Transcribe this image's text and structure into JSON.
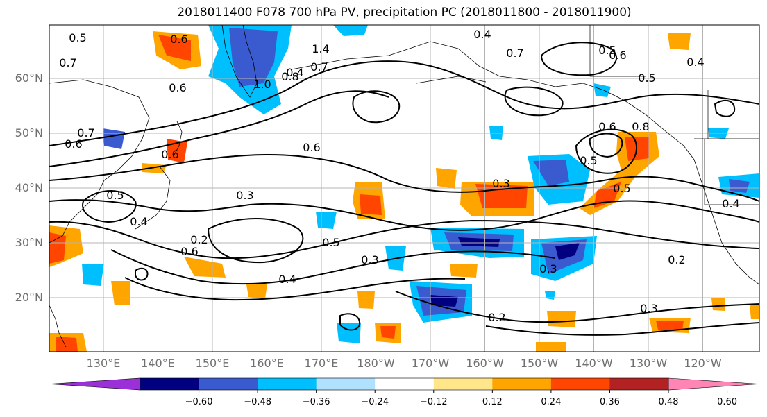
{
  "title": "2018011400 F078 700 hPa PV, precipitation PC (2018011800 - 2018011900)",
  "axes": {
    "lat_ticks": [
      "60°N",
      "50°N",
      "40°N",
      "30°N",
      "20°N"
    ],
    "lon_ticks": [
      "130°E",
      "140°E",
      "150°E",
      "160°E",
      "170°E",
      "180°W",
      "170°W",
      "160°W",
      "150°W",
      "140°W",
      "130°W",
      "120°W"
    ]
  },
  "colorbar": {
    "tick_labels": [
      "−0.60",
      "−0.48",
      "−0.36",
      "−0.24",
      "−0.12",
      "0.12",
      "0.24",
      "0.36",
      "0.48",
      "0.60"
    ],
    "colors": [
      "#9b30d9",
      "#000080",
      "#3a5bd0",
      "#00bfff",
      "#b0e2ff",
      "#ffffff",
      "#ffe68a",
      "#ffa500",
      "#ff4500",
      "#b22222",
      "#ff85b5"
    ]
  },
  "contour_labels": [
    "0.6",
    "0.5",
    "0.7",
    "1.4",
    "0.8",
    "0.7",
    "1.0",
    "0.4",
    "0.4",
    "0.7",
    "0.5",
    "0.6",
    "0.5",
    "0.4",
    "0.6",
    "0.6",
    "0.7",
    "0.6",
    "0.3",
    "0.5",
    "0.4",
    "0.3",
    "0.2",
    "0.6",
    "0.5",
    "0.5",
    "0.3",
    "0.4",
    "0.3",
    "0.8",
    "0.6",
    "0.5",
    "0.4",
    "0.2",
    "0.3",
    "0.2",
    "0.6"
  ]
}
